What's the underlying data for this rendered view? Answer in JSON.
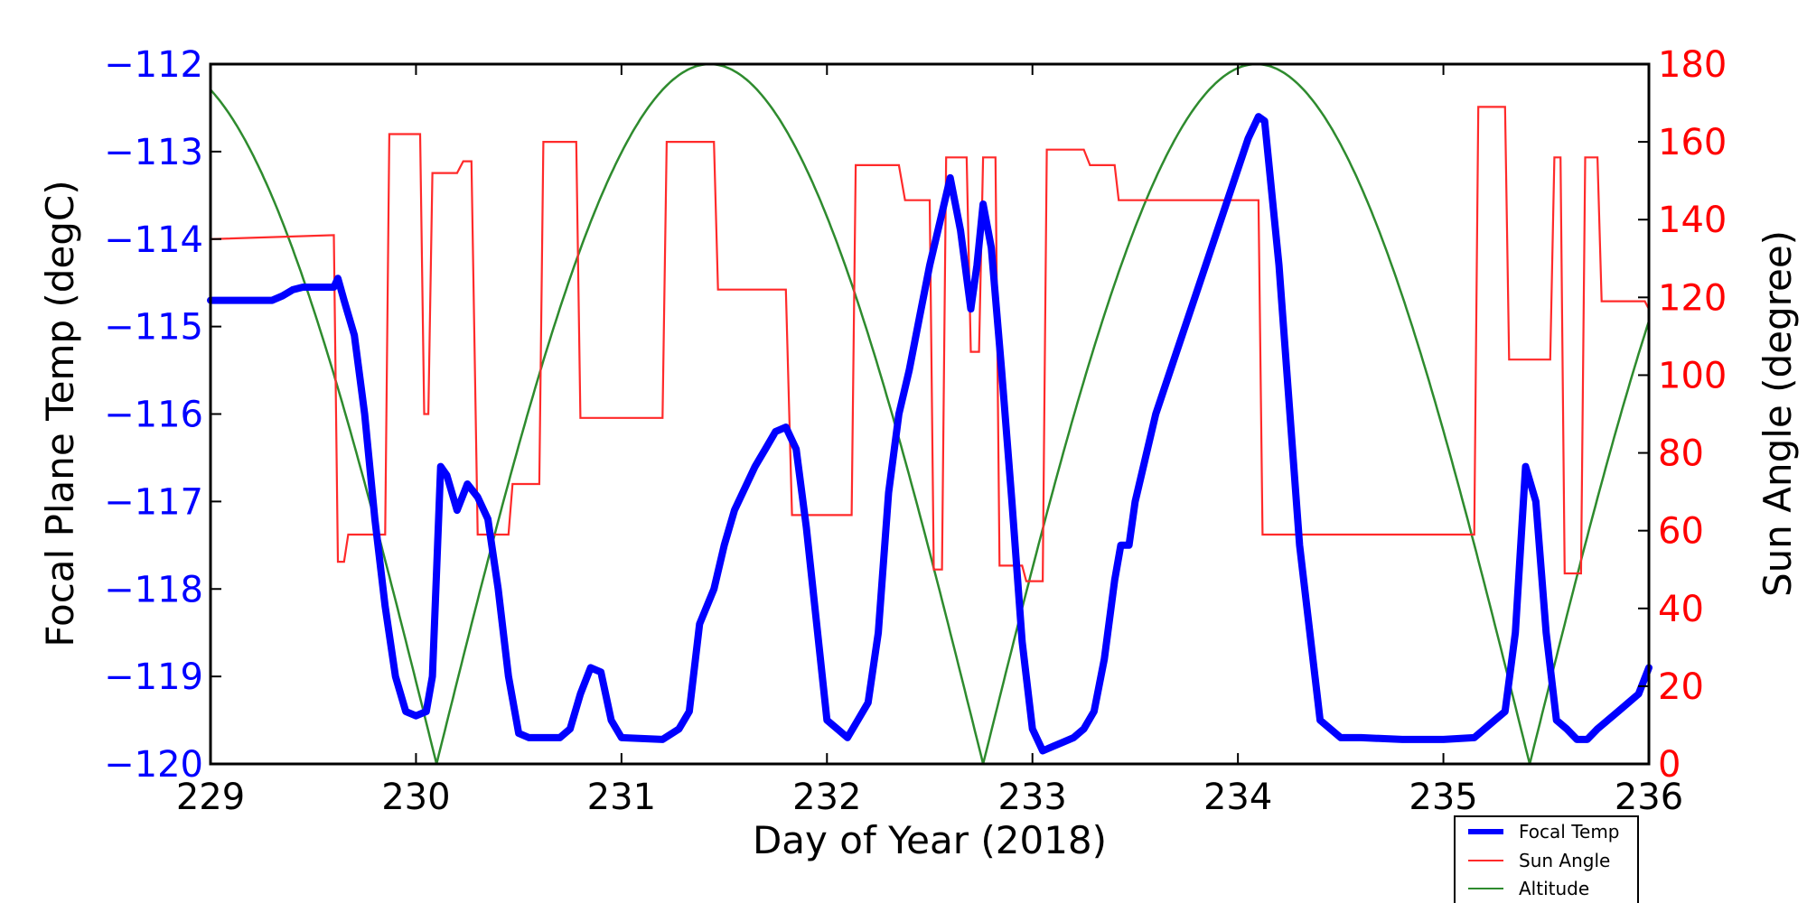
{
  "chart_data": {
    "type": "line",
    "xlabel": "Day of Year (2018)",
    "ylabel_left": "Focal Plane Temp (degC)",
    "ylabel_right": "Sun Angle (degree)",
    "xlim": [
      229,
      236
    ],
    "ylim_left": [
      -120,
      -112
    ],
    "ylim_right": [
      0,
      180
    ],
    "x_ticks": [
      229,
      230,
      231,
      232,
      233,
      234,
      235,
      236
    ],
    "x_tick_labels": [
      "229",
      "230",
      "231",
      "232",
      "233",
      "234",
      "235",
      "236"
    ],
    "y_left_ticks": [
      -112,
      -113,
      -114,
      -115,
      -116,
      -117,
      -118,
      -119,
      -120
    ],
    "y_left_tick_labels": [
      "−112",
      "−113",
      "−114",
      "−115",
      "−116",
      "−117",
      "−118",
      "−119",
      "−120"
    ],
    "y_right_ticks": [
      180,
      160,
      140,
      120,
      100,
      80,
      60,
      40,
      20,
      0
    ],
    "y_right_tick_labels": [
      "180",
      "160",
      "140",
      "120",
      "100",
      "80",
      "60",
      "40",
      "20",
      "0"
    ],
    "grid": false,
    "legend_position": "bottom-right",
    "colors": {
      "left_axis": "#0000ff",
      "right_axis": "#ff0000",
      "focal": "#0000ff",
      "sun": "#ff2a2a",
      "altitude": "#2e8b2e"
    },
    "series": [
      {
        "name": "Focal Temp",
        "axis": "left",
        "points": [
          [
            229.0,
            -114.7
          ],
          [
            229.3,
            -114.7
          ],
          [
            229.35,
            -114.65
          ],
          [
            229.4,
            -114.58
          ],
          [
            229.45,
            -114.55
          ],
          [
            229.6,
            -114.55
          ],
          [
            229.62,
            -114.45
          ],
          [
            229.65,
            -114.7
          ],
          [
            229.7,
            -115.1
          ],
          [
            229.75,
            -116.0
          ],
          [
            229.8,
            -117.2
          ],
          [
            229.85,
            -118.2
          ],
          [
            229.9,
            -119.0
          ],
          [
            229.95,
            -119.4
          ],
          [
            230.0,
            -119.45
          ],
          [
            230.05,
            -119.4
          ],
          [
            230.08,
            -119.0
          ],
          [
            230.1,
            -117.8
          ],
          [
            230.12,
            -116.6
          ],
          [
            230.15,
            -116.7
          ],
          [
            230.2,
            -117.1
          ],
          [
            230.25,
            -116.8
          ],
          [
            230.3,
            -116.95
          ],
          [
            230.35,
            -117.2
          ],
          [
            230.4,
            -118.0
          ],
          [
            230.45,
            -119.0
          ],
          [
            230.5,
            -119.65
          ],
          [
            230.55,
            -119.7
          ],
          [
            230.6,
            -119.7
          ],
          [
            230.7,
            -119.7
          ],
          [
            230.75,
            -119.6
          ],
          [
            230.8,
            -119.2
          ],
          [
            230.85,
            -118.9
          ],
          [
            230.9,
            -118.95
          ],
          [
            230.95,
            -119.5
          ],
          [
            231.0,
            -119.7
          ],
          [
            231.2,
            -119.72
          ],
          [
            231.28,
            -119.6
          ],
          [
            231.33,
            -119.4
          ],
          [
            231.38,
            -118.4
          ],
          [
            231.45,
            -118.0
          ],
          [
            231.5,
            -117.5
          ],
          [
            231.55,
            -117.1
          ],
          [
            231.6,
            -116.85
          ],
          [
            231.65,
            -116.6
          ],
          [
            231.7,
            -116.4
          ],
          [
            231.75,
            -116.2
          ],
          [
            231.8,
            -116.15
          ],
          [
            231.85,
            -116.4
          ],
          [
            231.9,
            -117.3
          ],
          [
            231.95,
            -118.4
          ],
          [
            232.0,
            -119.5
          ],
          [
            232.05,
            -119.6
          ],
          [
            232.1,
            -119.7
          ],
          [
            232.15,
            -119.5
          ],
          [
            232.2,
            -119.3
          ],
          [
            232.25,
            -118.5
          ],
          [
            232.3,
            -116.9
          ],
          [
            232.35,
            -116.0
          ],
          [
            232.4,
            -115.5
          ],
          [
            232.45,
            -114.9
          ],
          [
            232.5,
            -114.3
          ],
          [
            232.55,
            -113.8
          ],
          [
            232.6,
            -113.3
          ],
          [
            232.65,
            -113.9
          ],
          [
            232.7,
            -114.8
          ],
          [
            232.73,
            -114.3
          ],
          [
            232.76,
            -113.6
          ],
          [
            232.8,
            -114.1
          ],
          [
            232.85,
            -115.5
          ],
          [
            232.9,
            -117.0
          ],
          [
            232.95,
            -118.6
          ],
          [
            233.0,
            -119.6
          ],
          [
            233.05,
            -119.85
          ],
          [
            233.1,
            -119.8
          ],
          [
            233.15,
            -119.75
          ],
          [
            233.2,
            -119.7
          ],
          [
            233.25,
            -119.6
          ],
          [
            233.3,
            -119.4
          ],
          [
            233.35,
            -118.8
          ],
          [
            233.4,
            -117.9
          ],
          [
            233.43,
            -117.5
          ],
          [
            233.47,
            -117.5
          ],
          [
            233.5,
            -117.0
          ],
          [
            233.6,
            -116.0
          ],
          [
            233.7,
            -115.3
          ],
          [
            233.8,
            -114.6
          ],
          [
            233.9,
            -113.9
          ],
          [
            234.0,
            -113.2
          ],
          [
            234.05,
            -112.85
          ],
          [
            234.1,
            -112.6
          ],
          [
            234.13,
            -112.65
          ],
          [
            234.2,
            -114.3
          ],
          [
            234.3,
            -117.5
          ],
          [
            234.4,
            -119.5
          ],
          [
            234.5,
            -119.7
          ],
          [
            234.6,
            -119.7
          ],
          [
            234.8,
            -119.72
          ],
          [
            235.0,
            -119.72
          ],
          [
            235.15,
            -119.7
          ],
          [
            235.2,
            -119.6
          ],
          [
            235.25,
            -119.5
          ],
          [
            235.3,
            -119.4
          ],
          [
            235.35,
            -118.5
          ],
          [
            235.4,
            -116.6
          ],
          [
            235.45,
            -117.0
          ],
          [
            235.5,
            -118.5
          ],
          [
            235.55,
            -119.5
          ],
          [
            235.6,
            -119.6
          ],
          [
            235.65,
            -119.72
          ],
          [
            235.7,
            -119.72
          ],
          [
            235.75,
            -119.6
          ],
          [
            235.8,
            -119.5
          ],
          [
            235.85,
            -119.4
          ],
          [
            235.9,
            -119.3
          ],
          [
            235.95,
            -119.2
          ],
          [
            236.0,
            -118.9
          ]
        ]
      },
      {
        "name": "Sun Angle",
        "axis": "right",
        "points": [
          [
            229.0,
            135
          ],
          [
            229.6,
            136
          ],
          [
            229.62,
            52
          ],
          [
            229.65,
            52
          ],
          [
            229.67,
            59
          ],
          [
            229.85,
            59
          ],
          [
            229.87,
            162
          ],
          [
            230.02,
            162
          ],
          [
            230.04,
            90
          ],
          [
            230.06,
            90
          ],
          [
            230.08,
            152
          ],
          [
            230.2,
            152
          ],
          [
            230.23,
            155
          ],
          [
            230.27,
            155
          ],
          [
            230.3,
            59
          ],
          [
            230.45,
            59
          ],
          [
            230.47,
            72
          ],
          [
            230.6,
            72
          ],
          [
            230.62,
            160
          ],
          [
            230.78,
            160
          ],
          [
            230.8,
            89
          ],
          [
            231.2,
            89
          ],
          [
            231.22,
            160
          ],
          [
            231.45,
            160
          ],
          [
            231.47,
            122
          ],
          [
            231.8,
            122
          ],
          [
            231.83,
            64
          ],
          [
            232.12,
            64
          ],
          [
            232.14,
            154
          ],
          [
            232.35,
            154
          ],
          [
            232.38,
            145
          ],
          [
            232.5,
            145
          ],
          [
            232.52,
            50
          ],
          [
            232.56,
            50
          ],
          [
            232.58,
            156
          ],
          [
            232.68,
            156
          ],
          [
            232.7,
            106
          ],
          [
            232.74,
            106
          ],
          [
            232.76,
            156
          ],
          [
            232.82,
            156
          ],
          [
            232.84,
            51
          ],
          [
            232.95,
            51
          ],
          [
            232.97,
            47
          ],
          [
            233.05,
            47
          ],
          [
            233.07,
            158
          ],
          [
            233.25,
            158
          ],
          [
            233.28,
            154
          ],
          [
            233.4,
            154
          ],
          [
            233.42,
            145
          ],
          [
            234.1,
            145
          ],
          [
            234.12,
            59
          ],
          [
            235.15,
            59
          ],
          [
            235.17,
            169
          ],
          [
            235.3,
            169
          ],
          [
            235.32,
            104
          ],
          [
            235.52,
            104
          ],
          [
            235.54,
            156
          ],
          [
            235.57,
            156
          ],
          [
            235.59,
            49
          ],
          [
            235.67,
            49
          ],
          [
            235.69,
            156
          ],
          [
            235.75,
            156
          ],
          [
            235.77,
            119
          ],
          [
            235.98,
            119
          ],
          [
            236.0,
            117
          ]
        ]
      },
      {
        "name": "Altitude",
        "axis": "right",
        "curve": "abs-cos",
        "peak": 180,
        "minima_days": [
          230.1,
          232.75,
          235.4
        ],
        "maxima_days": [
          231.43,
          234.08
        ]
      }
    ],
    "legend": [
      "Focal Temp",
      "Sun Angle",
      "Altitude"
    ]
  }
}
